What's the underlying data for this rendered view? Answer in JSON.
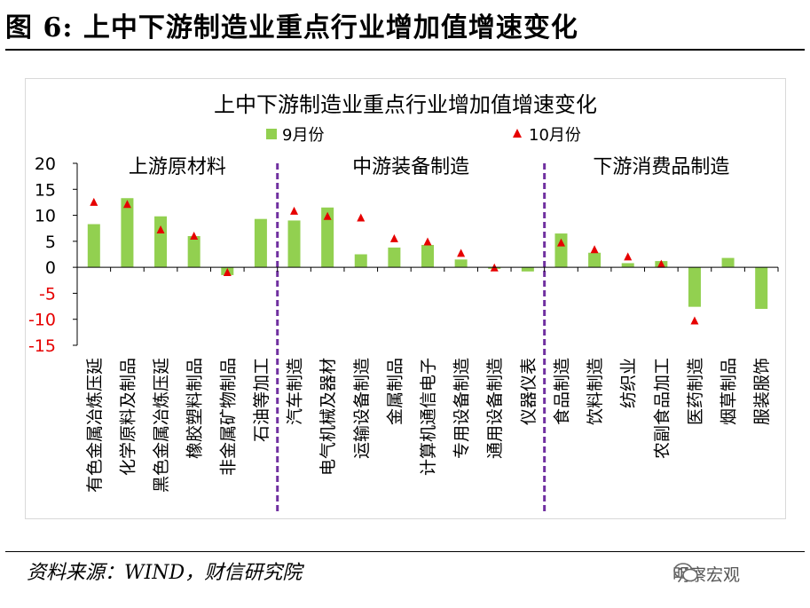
{
  "figure_title": "图 6:  上中下游制造业重点行业增加值增速变化",
  "source": "资料来源：WIND，财信研究院",
  "watermark": {
    "text": "明察宏观",
    "icon": "wechat-icon"
  },
  "colors": {
    "bar": "#92d050",
    "marker": "#e60000",
    "divider": "#7030a0",
    "neg_tick": "#e60000"
  },
  "chart_data": {
    "type": "bar",
    "title": "上中下游制造业重点行业增加值增速变化",
    "ylim": [
      -15,
      20
    ],
    "yticks": [
      20,
      15,
      10,
      5,
      0,
      -5,
      -10,
      -15
    ],
    "grid": false,
    "legend_position": "top",
    "groups": [
      {
        "label": "上游原材料",
        "start": 0,
        "end": 5
      },
      {
        "label": "中游装备制造",
        "start": 6,
        "end": 13
      },
      {
        "label": "下游消费品制造",
        "start": 14,
        "end": 20
      }
    ],
    "categories": [
      "有色金属冶炼压延",
      "化学原料及制品",
      "黑色金属冶炼压延",
      "橡胶塑料制品",
      "非金属矿物制品",
      "石油等加工",
      "汽车制造",
      "电气机械及器材",
      "运输设备制造",
      "金属制品",
      "计算机通信电子",
      "专用设备制造",
      "通用设备制造",
      "仪器仪表",
      "食品制造",
      "饮料制造",
      "纺织业",
      "农副食品加工",
      "医药制造",
      "烟草制品",
      "服装服饰"
    ],
    "series": [
      {
        "name": "9月份",
        "kind": "bar",
        "values": [
          8.3,
          13.3,
          9.8,
          6.0,
          -1.5,
          9.3,
          9.0,
          11.5,
          2.5,
          3.8,
          4.3,
          1.5,
          -0.3,
          -0.8,
          6.5,
          2.8,
          0.8,
          1.2,
          -7.6,
          1.8,
          -8.0
        ]
      },
      {
        "name": "10月份",
        "kind": "marker",
        "values": [
          12.5,
          12.1,
          7.2,
          6.0,
          -1.0,
          null,
          10.8,
          9.8,
          9.5,
          5.5,
          4.9,
          2.7,
          -0.1,
          null,
          4.7,
          3.4,
          2.0,
          0.6,
          -10.3,
          null,
          null
        ]
      }
    ]
  }
}
